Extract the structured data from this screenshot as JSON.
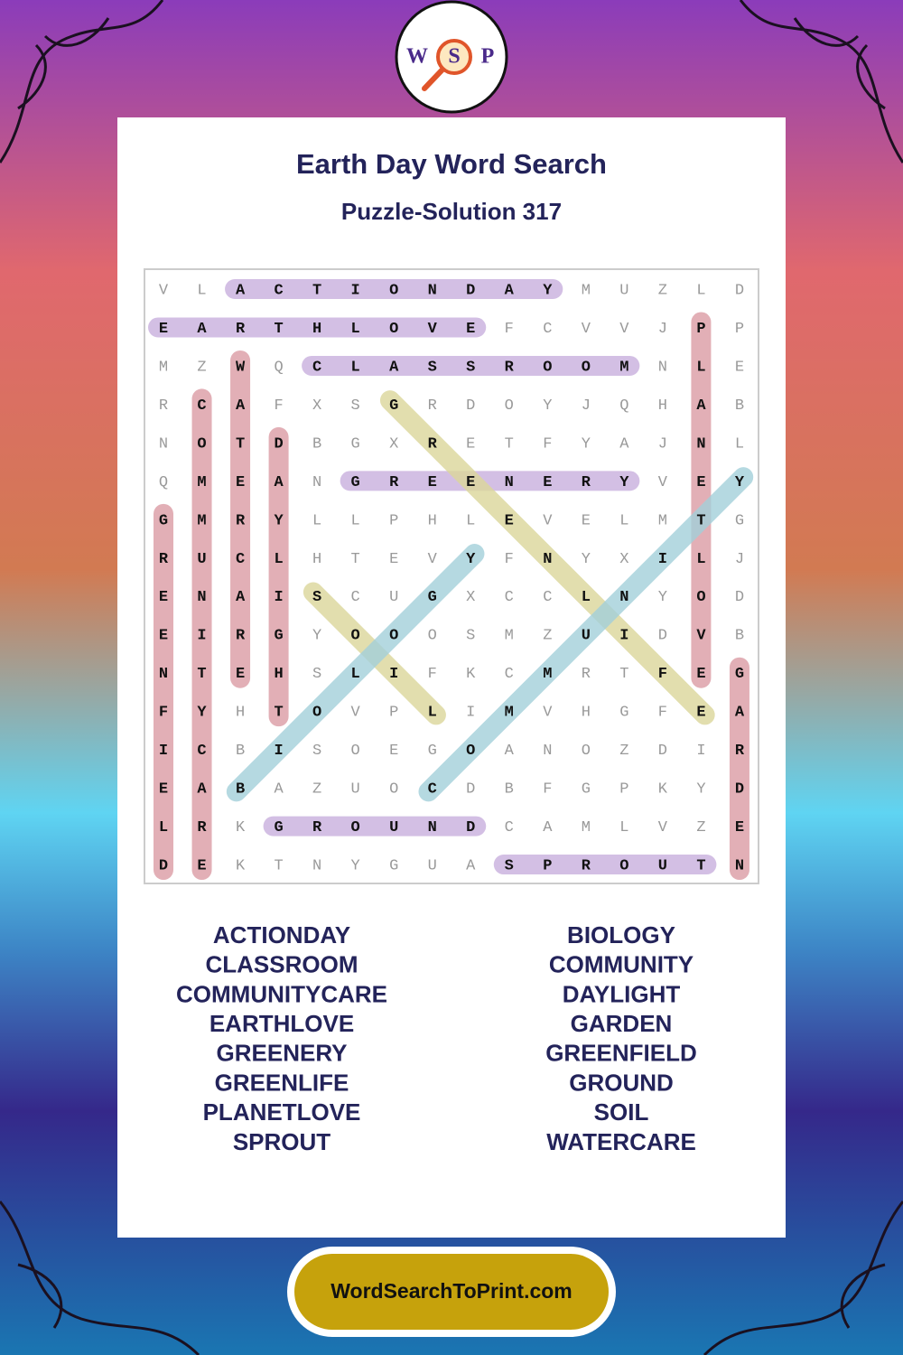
{
  "logo": {
    "letters": [
      "W",
      "S",
      "P"
    ]
  },
  "header": {
    "title": "Earth Day Word Search",
    "subtitle": "Puzzle-Solution 317"
  },
  "grid": {
    "rows": [
      [
        "V",
        "L",
        "A",
        "C",
        "T",
        "I",
        "O",
        "N",
        "D",
        "A",
        "Y",
        "M",
        "U",
        "Z",
        "L",
        "D"
      ],
      [
        "E",
        "A",
        "R",
        "T",
        "H",
        "L",
        "O",
        "V",
        "E",
        "F",
        "C",
        "V",
        "V",
        "J",
        "P",
        "P"
      ],
      [
        "M",
        "Z",
        "W",
        "Q",
        "C",
        "L",
        "A",
        "S",
        "S",
        "R",
        "O",
        "O",
        "M",
        "N",
        "L",
        "E"
      ],
      [
        "R",
        "C",
        "A",
        "F",
        "X",
        "S",
        "G",
        "R",
        "D",
        "O",
        "Y",
        "J",
        "Q",
        "H",
        "A",
        "B"
      ],
      [
        "N",
        "O",
        "T",
        "D",
        "B",
        "G",
        "X",
        "R",
        "E",
        "T",
        "F",
        "Y",
        "A",
        "J",
        "N",
        "L"
      ],
      [
        "Q",
        "M",
        "E",
        "A",
        "N",
        "G",
        "R",
        "E",
        "E",
        "N",
        "E",
        "R",
        "Y",
        "V",
        "E",
        "Y"
      ],
      [
        "G",
        "M",
        "R",
        "Y",
        "L",
        "L",
        "P",
        "H",
        "L",
        "E",
        "V",
        "E",
        "L",
        "M",
        "T",
        "G"
      ],
      [
        "R",
        "U",
        "C",
        "L",
        "H",
        "T",
        "E",
        "V",
        "Y",
        "F",
        "N",
        "Y",
        "X",
        "I",
        "L",
        "J"
      ],
      [
        "E",
        "N",
        "A",
        "I",
        "S",
        "C",
        "U",
        "G",
        "X",
        "C",
        "C",
        "L",
        "N",
        "Y",
        "O",
        "D"
      ],
      [
        "E",
        "I",
        "R",
        "G",
        "Y",
        "O",
        "O",
        "O",
        "S",
        "M",
        "Z",
        "U",
        "I",
        "D",
        "V",
        "B"
      ],
      [
        "N",
        "T",
        "E",
        "H",
        "S",
        "L",
        "I",
        "F",
        "K",
        "C",
        "M",
        "R",
        "T",
        "F",
        "E",
        "G"
      ],
      [
        "F",
        "Y",
        "H",
        "T",
        "O",
        "V",
        "P",
        "L",
        "I",
        "M",
        "V",
        "H",
        "G",
        "F",
        "E",
        "A"
      ],
      [
        "I",
        "C",
        "B",
        "I",
        "S",
        "O",
        "E",
        "G",
        "O",
        "A",
        "N",
        "O",
        "Z",
        "D",
        "I",
        "R"
      ],
      [
        "E",
        "A",
        "B",
        "A",
        "Z",
        "U",
        "O",
        "C",
        "D",
        "B",
        "F",
        "G",
        "P",
        "K",
        "Y",
        "D"
      ],
      [
        "L",
        "R",
        "K",
        "G",
        "R",
        "O",
        "U",
        "N",
        "D",
        "C",
        "A",
        "M",
        "L",
        "V",
        "Z",
        "E"
      ],
      [
        "D",
        "E",
        "K",
        "T",
        "N",
        "Y",
        "G",
        "U",
        "A",
        "S",
        "P",
        "R",
        "O",
        "U",
        "T",
        "N"
      ]
    ]
  },
  "word_list": {
    "left": [
      "ACTIONDAY",
      "CLASSROOM",
      "COMMUNITYCARE",
      "EARTHLOVE",
      "GREENERY",
      "GREENLIFE",
      "PLANETLOVE",
      "SPROUT"
    ],
    "right": [
      "BIOLOGY",
      "COMMUNITY",
      "DAYLIGHT",
      "GARDEN",
      "GREENFIELD",
      "GROUND",
      "SOIL",
      "WATERCARE"
    ]
  },
  "footer": {
    "site": "WordSearchToPrint.com"
  }
}
